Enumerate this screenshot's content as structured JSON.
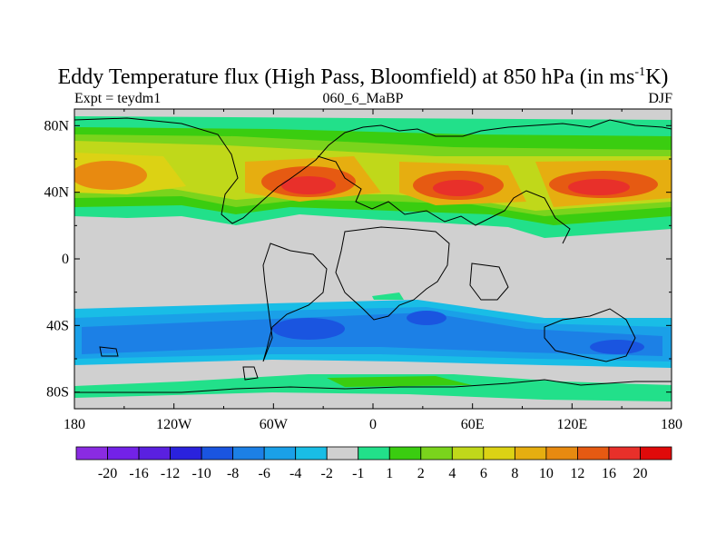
{
  "chart_data": {
    "type": "heatmap",
    "title": {
      "prefix": "Eddy Temperature flux (High Pass, Bloomfield) at 850 hPa (in ms",
      "superscript": "-1",
      "suffix": "K)"
    },
    "subtitle_left": "Expt = teydm1",
    "subtitle_center": "060_6_MaBP",
    "subtitle_right": "DJF",
    "x_axis": {
      "range": [
        -180,
        180
      ],
      "ticks": [
        {
          "value": -180,
          "label": "180"
        },
        {
          "value": -120,
          "label": "120W"
        },
        {
          "value": -60,
          "label": "60W"
        },
        {
          "value": 0,
          "label": "0"
        },
        {
          "value": 60,
          "label": "60E"
        },
        {
          "value": 120,
          "label": "120E"
        },
        {
          "value": 180,
          "label": "180"
        }
      ]
    },
    "y_axis": {
      "range": [
        -90,
        90
      ],
      "ticks": [
        {
          "value": 80,
          "label": "80N"
        },
        {
          "value": 40,
          "label": "40N"
        },
        {
          "value": 0,
          "label": "0"
        },
        {
          "value": -40,
          "label": "40S"
        },
        {
          "value": -80,
          "label": "80S"
        }
      ]
    },
    "colorbar": {
      "colors": [
        "#8a2be2",
        "#7322e8",
        "#5a20e0",
        "#2a22dd",
        "#1a55e0",
        "#1c80e6",
        "#1aa0e8",
        "#19bde6",
        "#d0d0d0",
        "#22e08a",
        "#3acd10",
        "#7ad41c",
        "#c0d81a",
        "#dcd214",
        "#e6ae10",
        "#e88a10",
        "#e65a12",
        "#e8302a",
        "#e00a0a"
      ],
      "labels": [
        "-20",
        "-16",
        "-12",
        "-10",
        "-8",
        "-6",
        "-4",
        "-2",
        "-1",
        "1",
        "2",
        "4",
        "6",
        "8",
        "10",
        "12",
        "16",
        "20"
      ]
    },
    "field": {
      "description_bands": [
        {
          "lon": [
            -180,
            180
          ],
          "lat": [
            20,
            90
          ],
          "level_min": 1,
          "level_max": 20
        },
        {
          "lon": [
            -180,
            180
          ],
          "lat": [
            -65,
            -35
          ],
          "level_min": -8,
          "level_max": -1
        },
        {
          "lon": [
            -180,
            180
          ],
          "lat": [
            -90,
            -70
          ],
          "level_min": 1,
          "level_max": 2
        }
      ]
    }
  }
}
